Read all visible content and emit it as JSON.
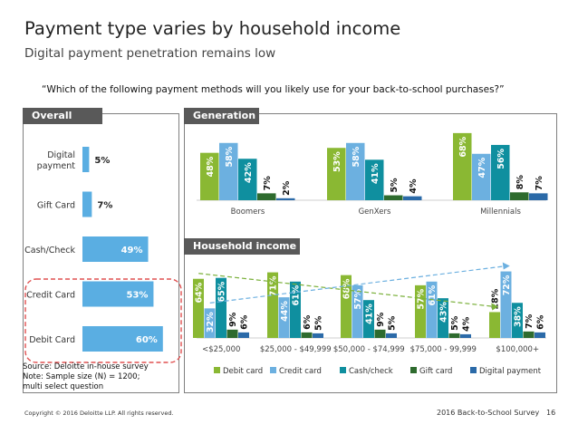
{
  "title": "Payment type varies by household income",
  "subtitle": "Digital payment penetration remains low",
  "question": "“Which of the following payment methods will you likely use for your back-to-school purchases?”",
  "source": {
    "line1": "Source:  Deloitte in-house survey",
    "line2": "Note:  Sample size (N) = 1200;",
    "line3": "multi select question"
  },
  "footer": {
    "copyright": "Copyright © 2016 Deloitte LLP. All rights reserved.",
    "survey": "2016 Back-to-School Survey",
    "page": "16"
  },
  "panels": {
    "overall": "Overall",
    "generation": "Generation",
    "household": "Household income"
  },
  "colors": {
    "debit": "#8ab833",
    "credit": "#6cb0e0",
    "cash": "#0f8f9f",
    "gift": "#2e6b2e",
    "digital": "#2b6aa8",
    "overall_bar": "#5aaee2",
    "tab": "#595959",
    "highlight": "#e05050"
  },
  "chart_data": [
    {
      "type": "bar",
      "orientation": "horizontal",
      "title": "Overall",
      "categories": [
        "Digital payment",
        "Gift Card",
        "Cash/Check",
        "Credit Card",
        "Debit Card"
      ],
      "values": [
        5,
        7,
        49,
        53,
        60
      ],
      "labels": [
        "5%",
        "7%",
        "49%",
        "53%",
        "60%"
      ],
      "highlighted": [
        "Credit Card",
        "Debit Card"
      ]
    },
    {
      "type": "bar",
      "title": "Generation",
      "categories": [
        "Boomers",
        "GenXers",
        "Millennials"
      ],
      "series": [
        {
          "name": "Debit card",
          "values": [
            48,
            53,
            68
          ],
          "labels": [
            "48%",
            "53%",
            "68%"
          ]
        },
        {
          "name": "Credit card",
          "values": [
            58,
            58,
            47
          ],
          "labels": [
            "58%",
            "58%",
            "47%"
          ]
        },
        {
          "name": "Cash/check",
          "values": [
            42,
            41,
            56
          ],
          "labels": [
            "42%",
            "41%",
            "56%"
          ]
        },
        {
          "name": "Gift card",
          "values": [
            7,
            5,
            8
          ],
          "labels": [
            "7%",
            "5%",
            "8%"
          ]
        },
        {
          "name": "Digital payment",
          "values": [
            2,
            4,
            7
          ],
          "labels": [
            "2%",
            "4%",
            "7%"
          ]
        }
      ],
      "ylim": [
        0,
        75
      ]
    },
    {
      "type": "bar",
      "title": "Household income",
      "categories": [
        "<$25,000",
        "$25,000 - $49,999",
        "$50,000 - $74,999",
        "$75,000 - 99,999",
        "$100,000+"
      ],
      "series": [
        {
          "name": "Debit card",
          "values": [
            64,
            71,
            68,
            57,
            28
          ],
          "labels": [
            "64%",
            "71%",
            "68%",
            "57%",
            "28%"
          ]
        },
        {
          "name": "Credit card",
          "values": [
            32,
            44,
            57,
            61,
            72
          ],
          "labels": [
            "32%",
            "44%",
            "57%",
            "61%",
            "72%"
          ]
        },
        {
          "name": "Cash/check",
          "values": [
            65,
            61,
            41,
            43,
            38
          ],
          "labels": [
            "65%",
            "61%",
            "41%",
            "43%",
            "38%"
          ]
        },
        {
          "name": "Gift card",
          "values": [
            9,
            6,
            9,
            5,
            7
          ],
          "labels": [
            "9%",
            "6%",
            "9%",
            "5%",
            "7%"
          ]
        },
        {
          "name": "Digital payment",
          "values": [
            6,
            5,
            5,
            4,
            6
          ],
          "labels": [
            "6%",
            "5%",
            "5%",
            "4%",
            "6%"
          ]
        }
      ],
      "ylim": [
        0,
        80
      ],
      "trend_lines": [
        "Debit card",
        "Credit card"
      ],
      "legend": "bottom"
    }
  ]
}
